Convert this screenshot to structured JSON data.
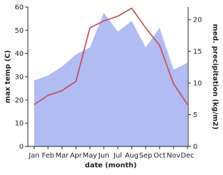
{
  "chart_data": {
    "type": "line_area",
    "x_label": "date (month)",
    "y_label": "max temp (C)",
    "y2_label": "med. precipitation (kg/m2)",
    "categories": [
      "Jan",
      "Feb",
      "Mar",
      "Apr",
      "May",
      "Jun",
      "Jul",
      "Aug",
      "Sep",
      "Oct",
      "Nov",
      "Dec"
    ],
    "ylim": [
      0,
      60
    ],
    "yticks": [
      0,
      10,
      20,
      30,
      40,
      50,
      60
    ],
    "y2lim": [
      0,
      22
    ],
    "y2ticks": [
      0,
      5,
      10,
      15,
      20
    ],
    "series": [
      {
        "name": "med. precipitation",
        "color": "#b0bcf2",
        "axis": "y2",
        "values": [
          10.4,
          11.2,
          12.6,
          14.5,
          15.6,
          21.1,
          18.1,
          19.8,
          15.6,
          18.7,
          12.1,
          13.2
        ]
      },
      {
        "name": "max temp",
        "color": "#c4545a",
        "values": [
          18,
          22,
          24,
          28,
          51,
          54,
          56,
          59.5,
          51,
          43.5,
          27,
          18
        ]
      }
    ]
  }
}
